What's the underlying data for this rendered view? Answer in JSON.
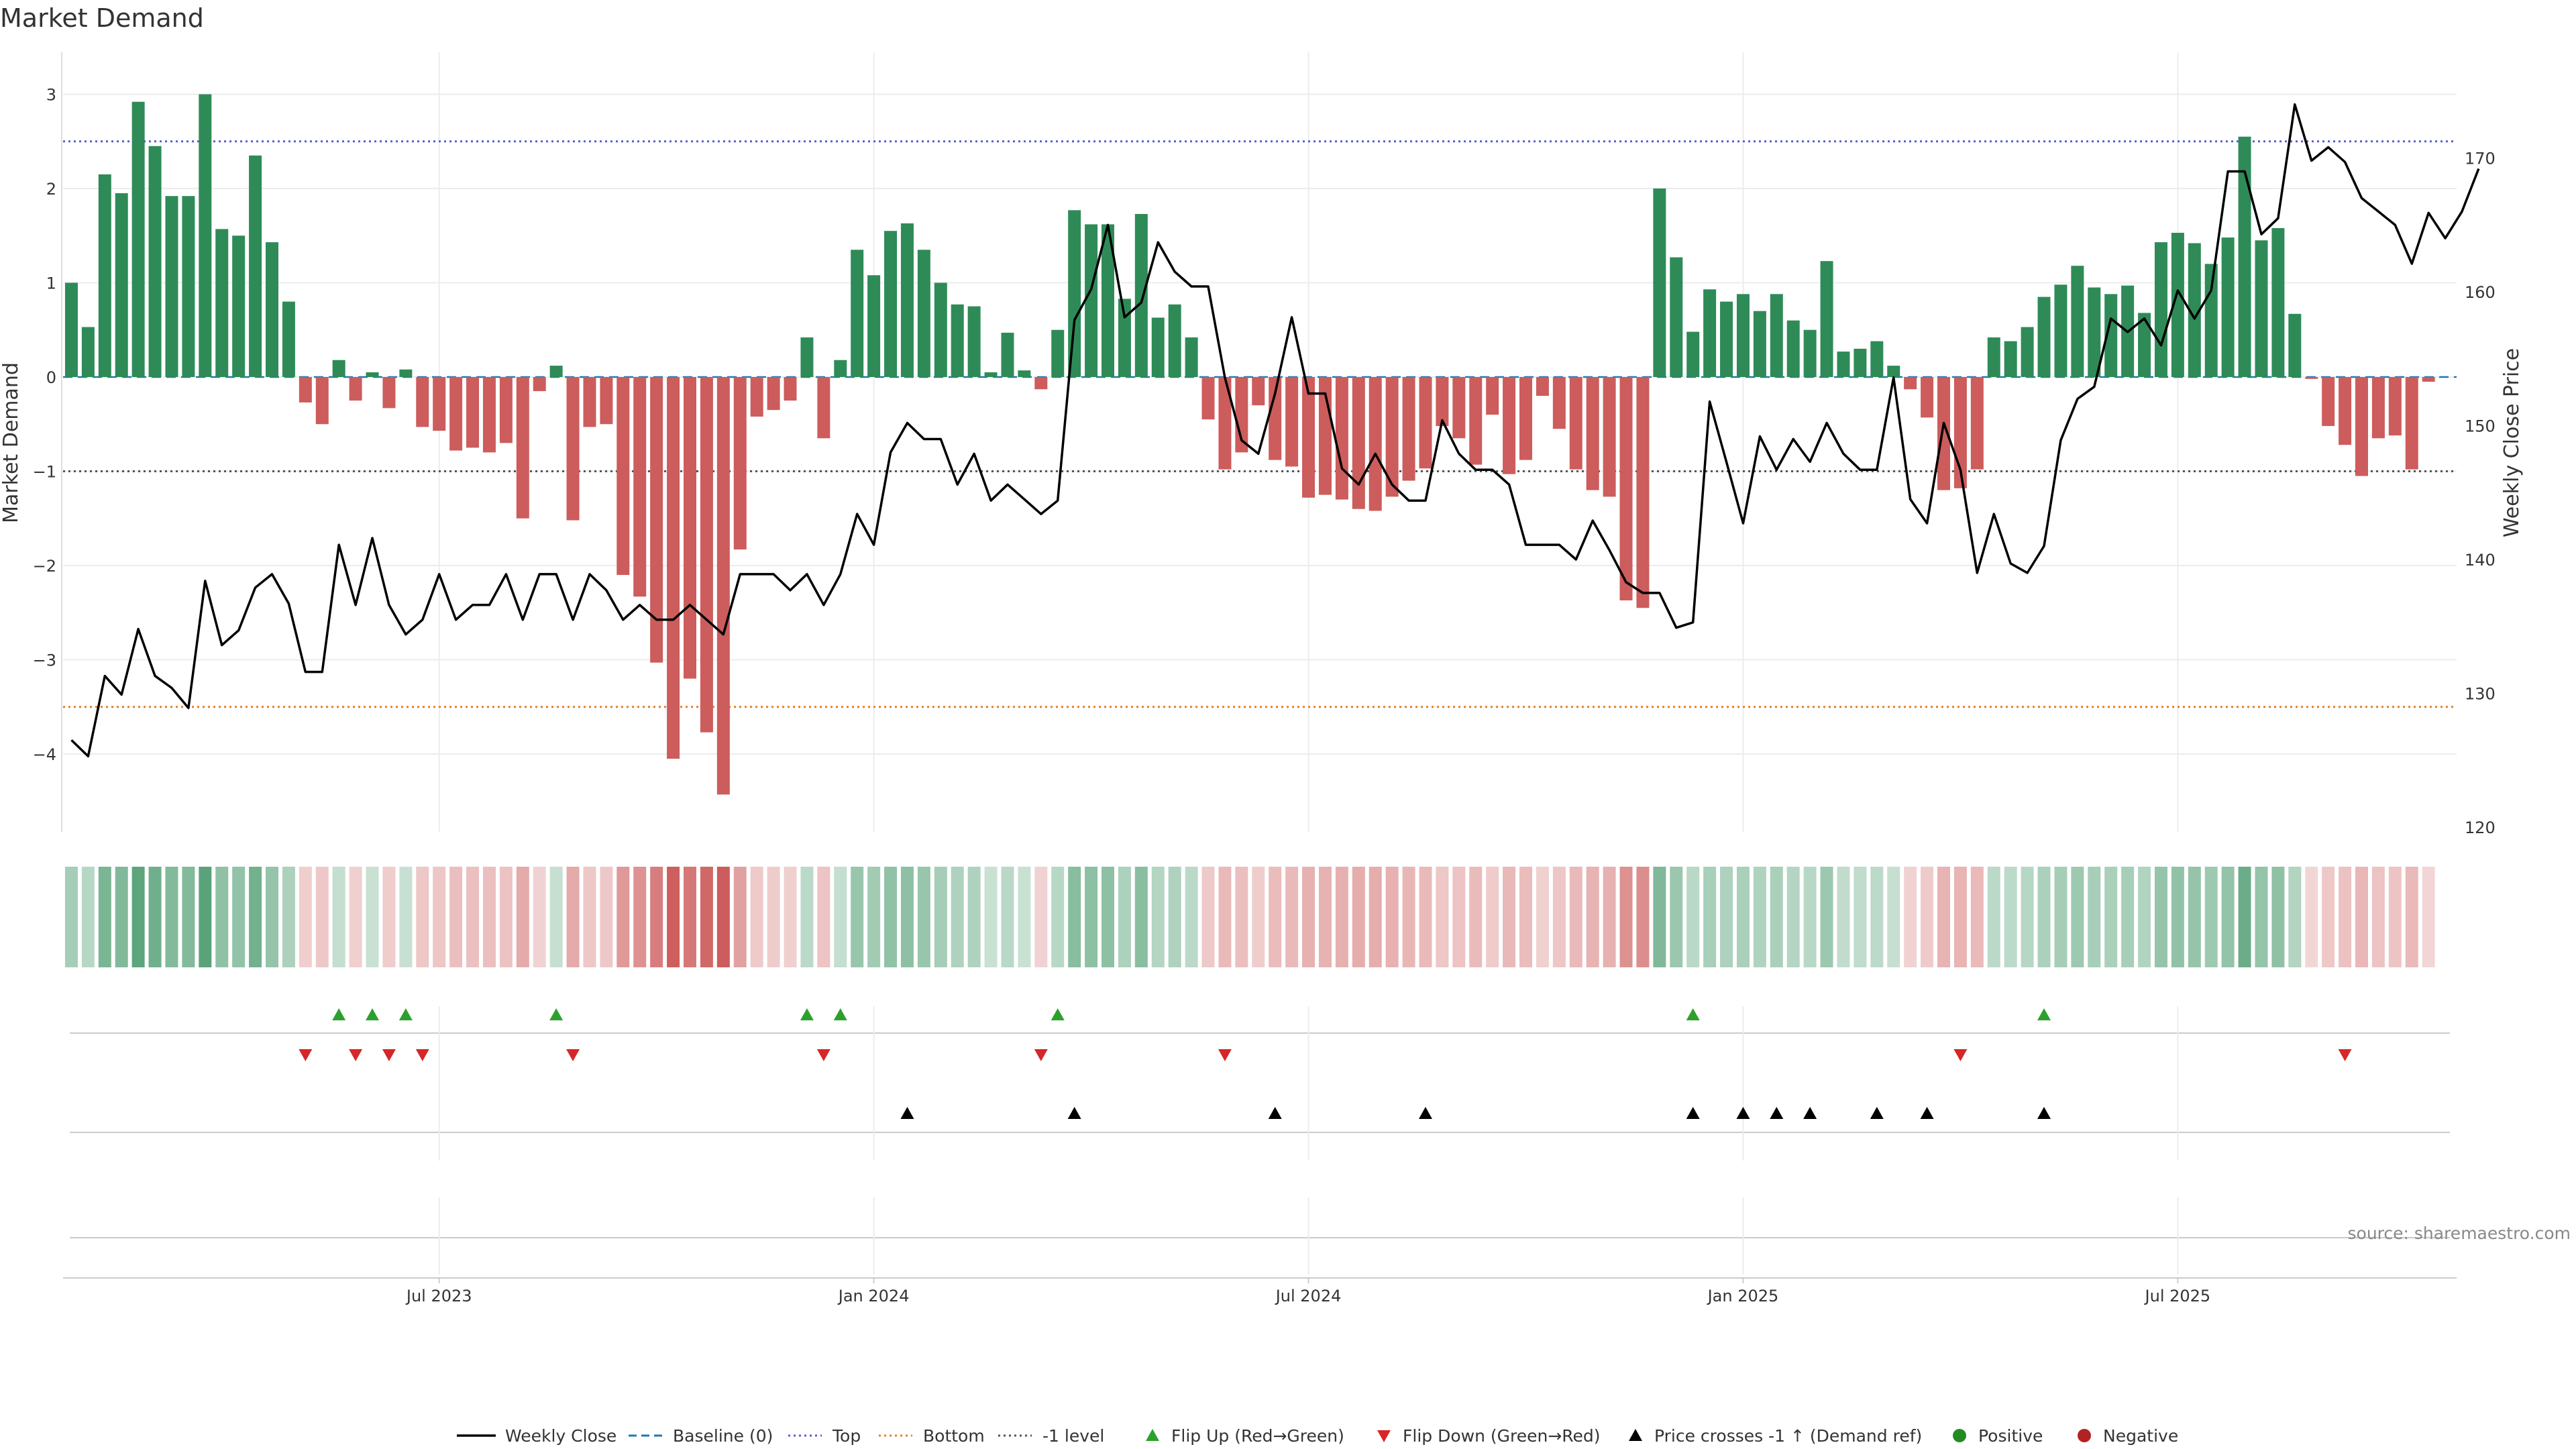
{
  "chart_data": {
    "type": "bar",
    "title": "Market Demand",
    "ylabel": "Market Demand",
    "y2label": "Weekly Close Price",
    "ylim": [
      -4.9,
      3.35
    ],
    "y2lim": [
      120,
      175
    ],
    "yticks": [
      "3",
      "2",
      "1",
      "0",
      "−1",
      "−2",
      "−3",
      "−4"
    ],
    "y2ticks": [
      "170",
      "160",
      "150",
      "140",
      "130",
      "120"
    ],
    "x_ticks": [
      {
        "week": 22,
        "label": "Jul 2023"
      },
      {
        "week": 48,
        "label": "Jan 2024"
      },
      {
        "week": 74,
        "label": "Jul 2024"
      },
      {
        "week": 100,
        "label": "Jan 2025"
      },
      {
        "week": 126,
        "label": "Jul 2025"
      }
    ],
    "reference_lines": {
      "top": 2.5,
      "bottom": -3.5,
      "minus_one": -1,
      "baseline": 0
    },
    "colors": {
      "positive": "#2e8b57",
      "negative": "#cd5c5c",
      "price": "#000000",
      "flip_up": "#2ca02c",
      "flip_down": "#d62728",
      "cross": "#000000",
      "top_line": "#5b5bd6",
      "bottom_line": "#e67e22",
      "minus_one_line": "#555555",
      "baseline_line": "#1f77b4",
      "positive_dot": "#228b22",
      "negative_dot": "#b22222"
    },
    "demand": [
      1.0,
      0.53,
      2.15,
      1.95,
      2.92,
      2.45,
      1.92,
      1.92,
      3.0,
      1.57,
      1.5,
      2.35,
      1.43,
      0.8,
      -0.27,
      -0.5,
      0.18,
      -0.25,
      0.05,
      -0.33,
      0.08,
      -0.53,
      -0.57,
      -0.78,
      -0.75,
      -0.8,
      -0.7,
      -1.5,
      -0.15,
      0.12,
      -1.52,
      -0.53,
      -0.5,
      -2.1,
      -2.33,
      -3.03,
      -4.05,
      -3.2,
      -3.77,
      -4.43,
      -1.83,
      -0.42,
      -0.35,
      -0.25,
      0.42,
      -0.65,
      0.18,
      1.35,
      1.08,
      1.55,
      1.63,
      1.35,
      1.0,
      0.77,
      0.75,
      0.05,
      0.47,
      0.07,
      -0.13,
      0.5,
      1.77,
      1.62,
      1.62,
      0.83,
      1.73,
      0.63,
      0.77,
      0.42,
      -0.45,
      -0.98,
      -0.8,
      -0.3,
      -0.88,
      -0.95,
      -1.28,
      -1.25,
      -1.3,
      -1.4,
      -1.42,
      -1.27,
      -1.1,
      -0.97,
      -0.52,
      -0.65,
      -0.93,
      -0.4,
      -1.03,
      -0.88,
      -0.2,
      -0.55,
      -0.98,
      -1.2,
      -1.27,
      -2.37,
      -2.45,
      2.0,
      1.27,
      0.48,
      0.93,
      0.8,
      0.88,
      0.7,
      0.88,
      0.6,
      0.5,
      1.23,
      0.27,
      0.3,
      0.38,
      0.12,
      -0.13,
      -0.43,
      -1.2,
      -1.18,
      -0.98,
      0.42,
      0.38,
      0.53,
      0.85,
      0.98,
      1.18,
      0.95,
      0.88,
      0.97,
      0.68,
      1.43,
      1.53,
      1.42,
      1.2,
      1.48,
      2.55,
      1.45,
      1.58,
      0.67,
      -0.02,
      -0.52,
      -0.72,
      -1.05,
      -0.65,
      -0.62,
      -0.98,
      -0.05
    ],
    "price": [
      126.5,
      125.3,
      131.3,
      129.9,
      134.8,
      131.3,
      130.4,
      128.9,
      138.4,
      133.6,
      134.7,
      137.9,
      138.9,
      136.7,
      131.6,
      131.6,
      141.1,
      136.6,
      141.6,
      136.6,
      134.4,
      135.5,
      138.9,
      135.5,
      136.6,
      136.6,
      138.9,
      135.5,
      138.9,
      138.9,
      135.5,
      138.9,
      137.7,
      135.5,
      136.6,
      135.5,
      135.5,
      136.6,
      135.5,
      134.4,
      138.9,
      138.9,
      138.9,
      137.7,
      138.9,
      136.6,
      138.9,
      143.4,
      141.1,
      148.0,
      150.2,
      149.0,
      149.0,
      145.6,
      147.9,
      144.4,
      145.6,
      144.5,
      143.4,
      144.4,
      157.9,
      160.2,
      165.0,
      158.1,
      159.2,
      163.7,
      161.5,
      160.4,
      160.4,
      153.6,
      148.9,
      147.9,
      152.4,
      158.1,
      152.4,
      152.4,
      146.8,
      145.6,
      147.9,
      145.6,
      144.4,
      144.4,
      150.4,
      147.9,
      146.7,
      146.7,
      145.6,
      141.1,
      141.1,
      141.1,
      140.0,
      142.9,
      140.7,
      138.3,
      137.5,
      137.5,
      134.9,
      135.3,
      151.8,
      147.3,
      142.7,
      149.2,
      146.7,
      149.0,
      147.3,
      150.2,
      147.9,
      146.7,
      146.7,
      153.6,
      144.5,
      142.7,
      150.2,
      146.7,
      139.0,
      143.4,
      139.7,
      139.0,
      141.0,
      148.9,
      152.0,
      152.9,
      158.0,
      157.0,
      158.0,
      156.0,
      160.1,
      158.0,
      160.1,
      169.0,
      169.0,
      164.3,
      165.5,
      174.0,
      169.8,
      170.8,
      169.7,
      167.0,
      166.0,
      165.0,
      162.1,
      165.9,
      164.0,
      166.0,
      169.2
    ],
    "flip_up_weeks": [
      16,
      18,
      20,
      29,
      44,
      46,
      59,
      97,
      118
    ],
    "flip_down_weeks": [
      14,
      17,
      19,
      21,
      30,
      45,
      58,
      69,
      113,
      136
    ],
    "cross_weeks": [
      50,
      60,
      72,
      81,
      97,
      100,
      102,
      104,
      108,
      111,
      118
    ],
    "legend": [
      {
        "kind": "line",
        "label": "Weekly Close"
      },
      {
        "kind": "dash",
        "label": "Baseline (0)"
      },
      {
        "kind": "dot-blue",
        "label": "Top"
      },
      {
        "kind": "dot-orange",
        "label": "Bottom"
      },
      {
        "kind": "dot-gray",
        "label": "-1 level"
      },
      {
        "kind": "tri-up",
        "label": "Flip Up (Red→Green)"
      },
      {
        "kind": "tri-down",
        "label": "Flip Down (Green→Red)"
      },
      {
        "kind": "tri-black",
        "label": "Price crosses -1 ↑ (Demand ref)"
      },
      {
        "kind": "circle-green",
        "label": "Positive"
      },
      {
        "kind": "circle-red",
        "label": "Negative"
      }
    ],
    "source": "source: sharemaestro.com"
  }
}
